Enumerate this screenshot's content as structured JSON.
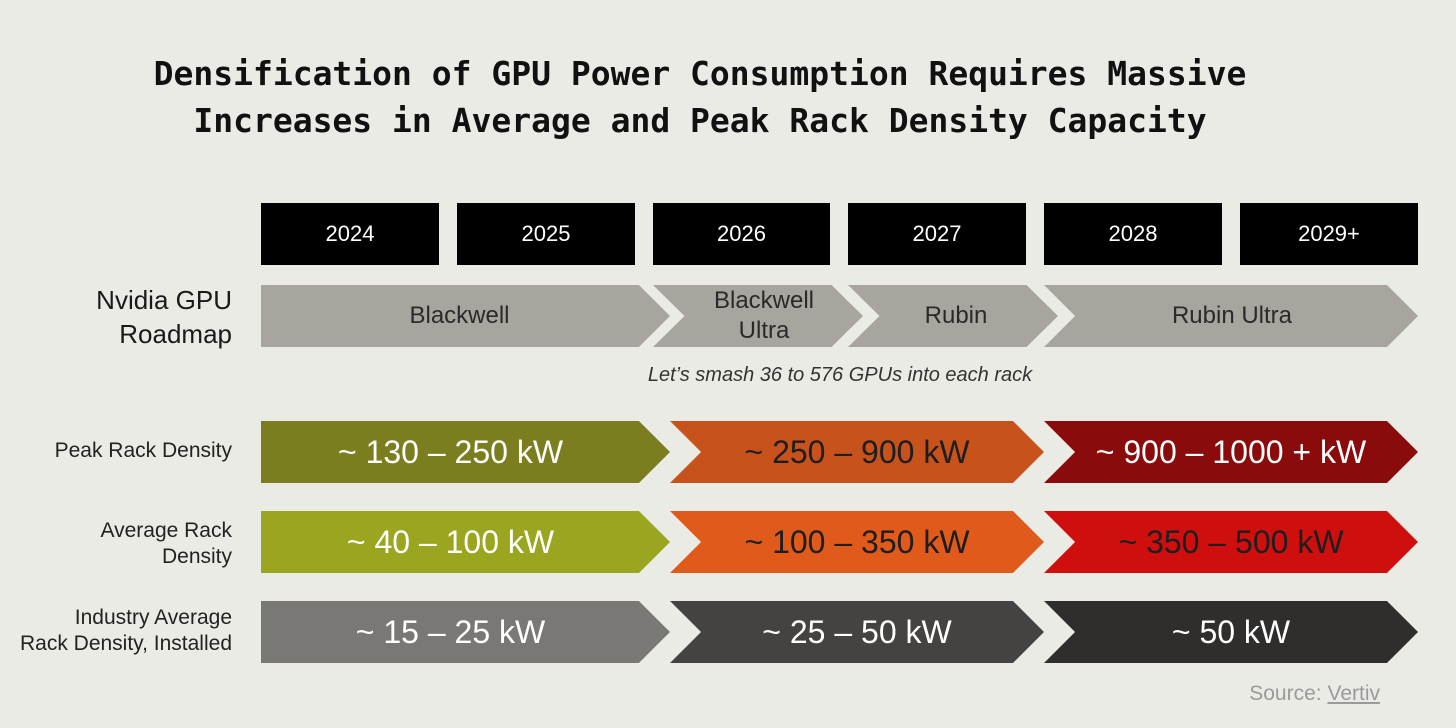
{
  "title": {
    "line1": "Densification of GPU Power Consumption Requires Massive",
    "line2": "Increases in Average and Peak Rack Density Capacity"
  },
  "years": [
    "2024",
    "2025",
    "2026",
    "2027",
    "2028",
    "2029+"
  ],
  "gpu_roadmap": {
    "label_line1": "Nvidia GPU",
    "label_line2": "Roadmap",
    "stages": [
      {
        "line1": "Blackwell",
        "line2": ""
      },
      {
        "line1": "Blackwell",
        "line2": "Ultra"
      },
      {
        "line1": "Rubin",
        "line2": ""
      },
      {
        "line1": "Rubin Ultra",
        "line2": ""
      }
    ],
    "color": "#a8a49e"
  },
  "caption": "Let’s smash 36 to 576 GPUs into each rack",
  "rows": [
    {
      "label_line1": "Peak Rack Density",
      "label_line2": "",
      "values": [
        "~ 130 – 250 kW",
        "~ 250 – 900 kW",
        "~ 900 – 1000 + kW"
      ],
      "colors": [
        "#7a7e1e",
        "#c8521c",
        "#8a0b0b"
      ]
    },
    {
      "label_line1": "Average Rack",
      "label_line2": "Density",
      "values": [
        "~ 40 – 100 kW",
        "~ 100 – 350 kW",
        "~ 350 – 500 kW"
      ],
      "colors": [
        "#9aa520",
        "#e05a1c",
        "#cf0e0e"
      ]
    },
    {
      "label_line1": "Industry Average",
      "label_line2": "Rack Density, Installed",
      "values": [
        "~ 15 – 25 kW",
        "~ 25 – 50 kW",
        "~ 50 kW"
      ],
      "colors": [
        "#7a7874",
        "#454341",
        "#2f2e2d"
      ]
    }
  ],
  "source": {
    "prefix": "Source: ",
    "link_text": "Vertiv"
  }
}
